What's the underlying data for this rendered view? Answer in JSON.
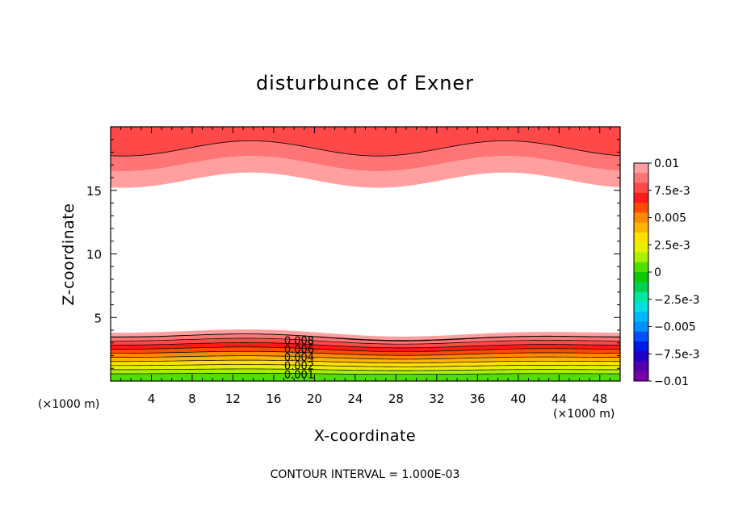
{
  "chart_data": {
    "type": "contour",
    "title": "disturbunce of Exner",
    "xlabel": "X-coordinate",
    "ylabel": "Z-coordinate",
    "x_unit_left": "(×1000 m)",
    "x_unit_right": "(×1000 m)",
    "xlim": [
      0,
      50
    ],
    "ylim": [
      0,
      20
    ],
    "x_ticks": [
      4,
      8,
      12,
      16,
      20,
      24,
      28,
      32,
      36,
      40,
      44,
      48
    ],
    "x_tick_labels": [
      "4",
      "8",
      "12",
      "16",
      "20",
      "24",
      "28",
      "32",
      "36",
      "40",
      "44",
      "48"
    ],
    "y_ticks": [
      5,
      10,
      15
    ],
    "y_tick_labels": [
      "5",
      "10",
      "15"
    ],
    "contour_interval_label": "CONTOUR INTERVAL = 1.000E-03",
    "colorbar": {
      "labels": [
        "0.01",
        "7.5e-3",
        "0.005",
        "2.5e-3",
        "0",
        "−2.5e-3",
        "−0.005",
        "−7.5e-3",
        "−0.01"
      ],
      "colors_top_to_bottom": [
        "#ff9f9f",
        "#ff7575",
        "#ff4848",
        "#ff1a1a",
        "#ff4a00",
        "#ff8a00",
        "#ffb400",
        "#ffe000",
        "#e8f000",
        "#a8f000",
        "#50e000",
        "#10c800",
        "#00d050",
        "#00e8a0",
        "#00e0e0",
        "#00b8ff",
        "#0090ff",
        "#0050ff",
        "#0018e8",
        "#2000c8",
        "#5000b0",
        "#7800a8"
      ]
    },
    "contour_labels": [
      "0.008",
      "0.006",
      "0.004",
      "0.002",
      "0.001"
    ],
    "top_band_colors_top_to_bottom": [
      "#ff4848",
      "#ff7575",
      "#ff9f9f"
    ],
    "bottom_band_colors_top_to_bottom": [
      "#ff9f9f",
      "#ff7575",
      "#ff4848",
      "#ff1a1a",
      "#ff4a00",
      "#ff8a00",
      "#ffb400",
      "#ffe000",
      "#e8f000",
      "#a8f000",
      "#50e000"
    ]
  }
}
